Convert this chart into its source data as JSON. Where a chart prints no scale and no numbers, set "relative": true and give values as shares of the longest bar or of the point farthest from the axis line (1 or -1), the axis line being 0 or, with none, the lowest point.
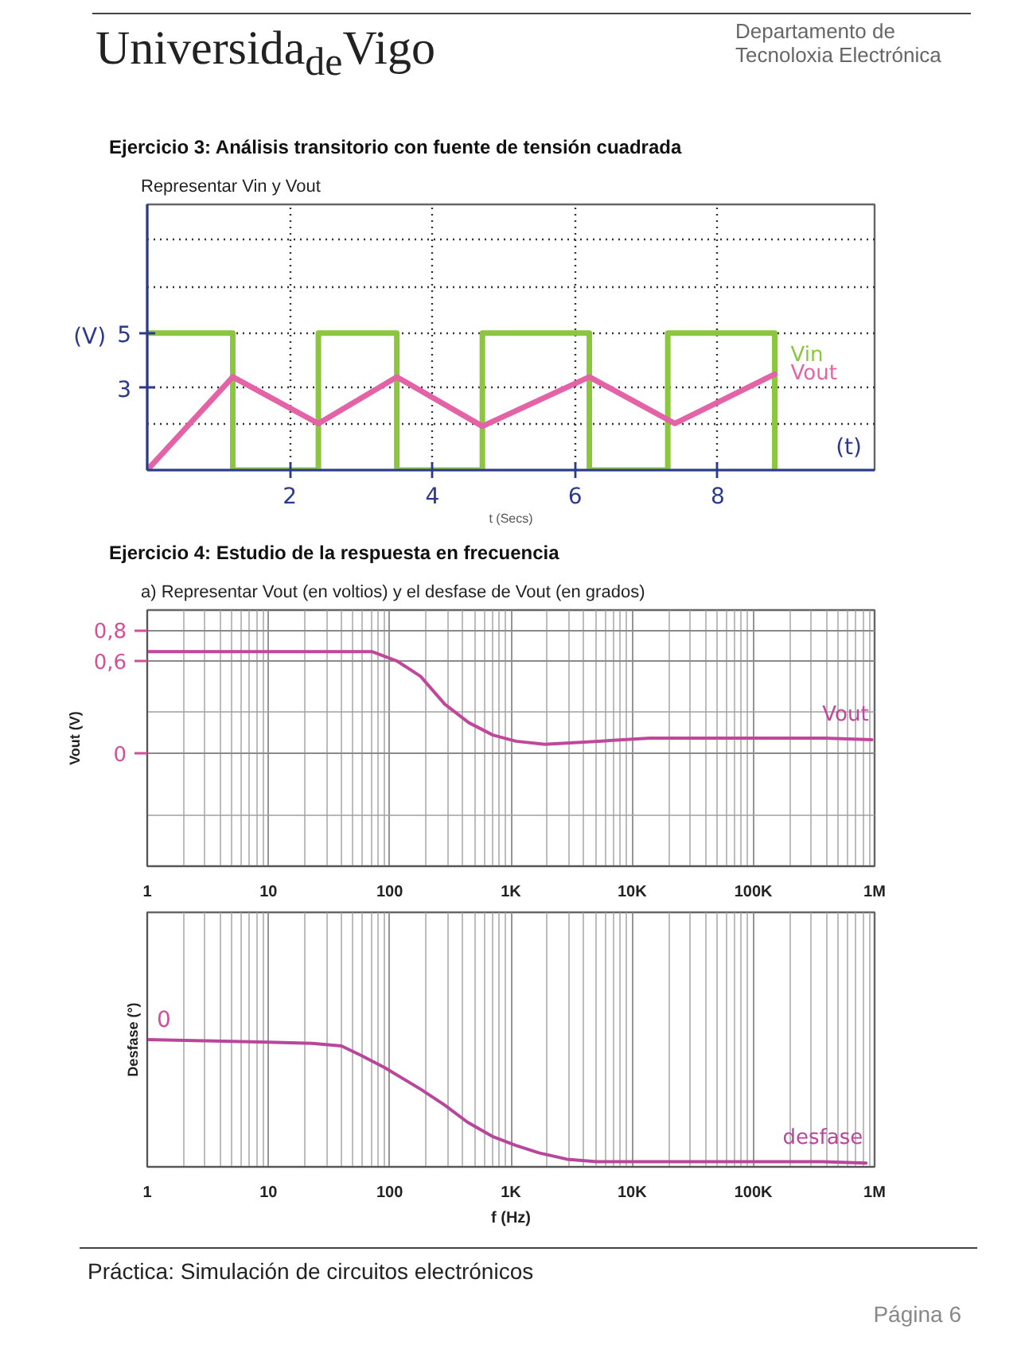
{
  "chart_data": [
    {
      "type": "line",
      "title": "Ejercicio 3: Análisis transitorio con fuente de tensión cuadrada",
      "subtitle": "Representar Vin y Vout",
      "xlabel": "t (Secs)",
      "ylabel": "(V)",
      "xlim": [
        0,
        10.2
      ],
      "ylim": [
        0,
        9.7
      ],
      "xticks": [
        2,
        4,
        6,
        8
      ],
      "yticks": [
        {
          "value": 1.7,
          "label": null
        },
        3,
        5,
        {
          "value": 6.7,
          "label": null
        },
        {
          "value": 8.4,
          "label": null
        }
      ],
      "grid": true,
      "series": [
        {
          "name": "Vin",
          "type": "step",
          "color": "#8cc63f",
          "x": [
            0,
            1.2,
            2.4,
            3.5,
            4.7,
            6.2,
            7.3,
            8.8
          ],
          "values": [
            5,
            0,
            5,
            0,
            5,
            0,
            5,
            0
          ]
        },
        {
          "name": "Vout",
          "type": "line",
          "color": "#e463a6",
          "x": [
            0,
            1.2,
            2.4,
            3.5,
            4.7,
            6.2,
            7.4,
            8.8
          ],
          "values": [
            0,
            3.4,
            1.7,
            3.4,
            1.6,
            3.4,
            1.7,
            3.5
          ]
        }
      ],
      "annotations": [
        "Universida$_{de}$Vigo",
        "Departamento de Tecnoloxia Electrónica",
        "(t)"
      ]
    },
    {
      "type": "line",
      "title": "Ejercicio 4: Estudio de la respuesta en frecuencia",
      "subtitle": "a) Representar Vout (en voltios) y el desfase de Vout (en grados)",
      "ylabel": "Vout (V)",
      "log": "x",
      "xlim": [
        1,
        1000000
      ],
      "ylim": [
        -0.73,
        0.93
      ],
      "xticks": [
        1,
        10,
        100,
        {
          "value": 1000,
          "label": "1K"
        },
        {
          "value": 10000,
          "label": "10K"
        },
        {
          "value": 100000,
          "label": "100K"
        },
        {
          "value": 1000000,
          "label": "1M"
        },
        {
          "value": 2,
          "label": null
        },
        {
          "value": 3,
          "label": null
        },
        {
          "value": 4,
          "label": null
        },
        {
          "value": 5,
          "label": null
        },
        {
          "value": 6,
          "label": null
        },
        {
          "value": 7,
          "label": null
        },
        {
          "value": 8,
          "label": null
        },
        {
          "value": 9,
          "label": null
        },
        {
          "value": 20,
          "label": null
        },
        {
          "value": 30,
          "label": null
        },
        {
          "value": 40,
          "label": null
        },
        {
          "value": 50,
          "label": null
        },
        {
          "value": 60,
          "label": null
        },
        {
          "value": 70,
          "label": null
        },
        {
          "value": 80,
          "label": null
        },
        {
          "value": 90,
          "label": null
        },
        {
          "value": 200,
          "label": null
        },
        {
          "value": 300,
          "label": null
        },
        {
          "value": 400,
          "label": null
        },
        {
          "value": 500,
          "label": null
        },
        {
          "value": 600,
          "label": null
        },
        {
          "value": 700,
          "label": null
        },
        {
          "value": 800,
          "label": null
        },
        {
          "value": 900,
          "label": null
        },
        {
          "value": 2000,
          "label": null
        },
        {
          "value": 3000,
          "label": null
        },
        {
          "value": 4000,
          "label": null
        },
        {
          "value": 5000,
          "label": null
        },
        {
          "value": 6000,
          "label": null
        },
        {
          "value": 7000,
          "label": null
        },
        {
          "value": 8000,
          "label": null
        },
        {
          "value": 9000,
          "label": null
        },
        {
          "value": 20000,
          "label": null
        },
        {
          "value": 30000,
          "label": null
        },
        {
          "value": 40000,
          "label": null
        },
        {
          "value": 50000,
          "label": null
        },
        {
          "value": 60000,
          "label": null
        },
        {
          "value": 70000,
          "label": null
        },
        {
          "value": 80000,
          "label": null
        },
        {
          "value": 90000,
          "label": null
        },
        {
          "value": 200000,
          "label": null
        },
        {
          "value": 300000,
          "label": null
        },
        {
          "value": 400000,
          "label": null
        },
        {
          "value": 500000,
          "label": null
        },
        {
          "value": 600000,
          "label": null
        },
        {
          "value": 700000,
          "label": null
        },
        {
          "value": 800000,
          "label": null
        },
        {
          "value": 900000,
          "label": null
        }
      ],
      "yticks": [
        {
          "value": -0.4,
          "label": null
        },
        0,
        {
          "value": 0.27,
          "label": null
        },
        {
          "value": 0.6,
          "label": "0,6"
        },
        {
          "value": 0.8,
          "label": "0,8"
        }
      ],
      "grid": true,
      "series": [
        {
          "name": "Vout",
          "color": "#c0479a",
          "x": [
            1,
            3,
            10,
            32,
            72,
            115,
            180,
            285,
            450,
            710,
            1100,
            1900,
            5300,
            14000,
            47000,
            140000,
            390000,
            950000
          ],
          "values": [
            0.66,
            0.66,
            0.66,
            0.66,
            0.66,
            0.6,
            0.5,
            0.32,
            0.2,
            0.12,
            0.08,
            0.06,
            0.08,
            0.1,
            0.1,
            0.1,
            0.1,
            0.09
          ]
        }
      ]
    },
    {
      "type": "line",
      "relative": true,
      "xlabel": "f (Hz)",
      "ylabel": "Desfase (°)",
      "log": "x",
      "xlim": [
        1,
        1000000
      ],
      "xticks": [
        1,
        10,
        100,
        {
          "value": 1000,
          "label": "1K"
        },
        {
          "value": 10000,
          "label": "10K"
        },
        {
          "value": 100000,
          "label": "100K"
        },
        {
          "value": 1000000,
          "label": "1M"
        },
        {
          "value": 2,
          "label": null
        },
        {
          "value": 3,
          "label": null
        },
        {
          "value": 4,
          "label": null
        },
        {
          "value": 5,
          "label": null
        },
        {
          "value": 6,
          "label": null
        },
        {
          "value": 7,
          "label": null
        },
        {
          "value": 8,
          "label": null
        },
        {
          "value": 9,
          "label": null
        },
        {
          "value": 20,
          "label": null
        },
        {
          "value": 30,
          "label": null
        },
        {
          "value": 40,
          "label": null
        },
        {
          "value": 50,
          "label": null
        },
        {
          "value": 60,
          "label": null
        },
        {
          "value": 70,
          "label": null
        },
        {
          "value": 80,
          "label": null
        },
        {
          "value": 90,
          "label": null
        },
        {
          "value": 200,
          "label": null
        },
        {
          "value": 300,
          "label": null
        },
        {
          "value": 400,
          "label": null
        },
        {
          "value": 500,
          "label": null
        },
        {
          "value": 600,
          "label": null
        },
        {
          "value": 700,
          "label": null
        },
        {
          "value": 800,
          "label": null
        },
        {
          "value": 900,
          "label": null
        },
        {
          "value": 2000,
          "label": null
        },
        {
          "value": 3000,
          "label": null
        },
        {
          "value": 4000,
          "label": null
        },
        {
          "value": 5000,
          "label": null
        },
        {
          "value": 6000,
          "label": null
        },
        {
          "value": 7000,
          "label": null
        },
        {
          "value": 8000,
          "label": null
        },
        {
          "value": 9000,
          "label": null
        },
        {
          "value": 20000,
          "label": null
        },
        {
          "value": 30000,
          "label": null
        },
        {
          "value": 40000,
          "label": null
        },
        {
          "value": 50000,
          "label": null
        },
        {
          "value": 60000,
          "label": null
        },
        {
          "value": 70000,
          "label": null
        },
        {
          "value": 80000,
          "label": null
        },
        {
          "value": 90000,
          "label": null
        },
        {
          "value": 200000,
          "label": null
        },
        {
          "value": 300000,
          "label": null
        },
        {
          "value": 400000,
          "label": null
        },
        {
          "value": 500000,
          "label": null
        },
        {
          "value": 600000,
          "label": null
        },
        {
          "value": 700000,
          "label": null
        },
        {
          "value": 800000,
          "label": null
        },
        {
          "value": 900000,
          "label": null
        }
      ],
      "grid": "x",
      "series": [
        {
          "name": "desfase",
          "color": "#b8469a",
          "x": [
            1,
            3,
            10,
            23,
            40,
            57,
            91,
            180,
            280,
            440,
            700,
            1090,
            1700,
            2900,
            5100,
            8800,
            15000,
            44000,
            130000,
            370000,
            850000
          ],
          "values": [
            1.0,
            0.99,
            0.98,
            0.97,
            0.95,
            0.88,
            0.78,
            0.61,
            0.49,
            0.35,
            0.24,
            0.17,
            0.11,
            0.06,
            0.04,
            0.04,
            0.04,
            0.04,
            0.04,
            0.04,
            0.03
          ]
        }
      ],
      "annotations": [
        {
          "text": "0",
          "x": 1,
          "y": 1.0
        },
        "Práctica: Simulación de circuitos electrónicos",
        "Página 6"
      ]
    }
  ]
}
